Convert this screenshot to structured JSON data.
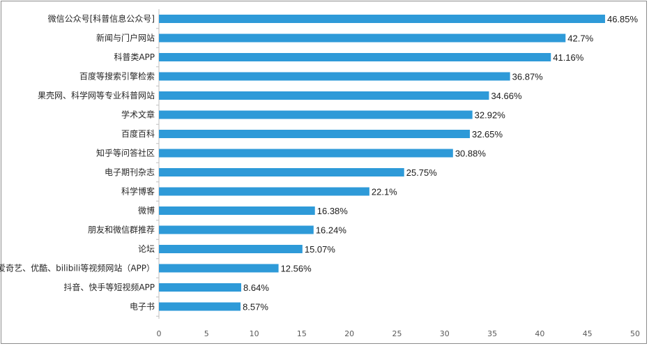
{
  "chart_data": {
    "type": "bar",
    "orientation": "horizontal",
    "title": "",
    "xlabel": "",
    "ylabel": "",
    "xlim": [
      0,
      50
    ],
    "xticks": [
      0,
      5,
      10,
      15,
      20,
      25,
      30,
      35,
      40,
      45,
      50
    ],
    "grid": false,
    "legend": "none",
    "bar_color": "#2e9ad8",
    "categories": [
      "微信公众号[科普信息公众号]",
      "新闻与门户网站",
      "科普类APP",
      "百度等搜索引擎检索",
      "果壳网、科学网等专业科普网站",
      "学术文章",
      "百度百科",
      "知乎等问答社区",
      "电子期刊杂志",
      "科学博客",
      "微博",
      "朋友和微信群推荐",
      "论坛",
      "爱奇艺、优酷、bilibili等视频网站（APP）",
      "抖音、快手等短视频APP",
      "电子书"
    ],
    "values": [
      46.85,
      42.7,
      41.16,
      36.87,
      34.66,
      32.92,
      32.65,
      30.88,
      25.75,
      22.1,
      16.38,
      16.24,
      15.07,
      12.56,
      8.64,
      8.57
    ],
    "value_labels": [
      "46.85%",
      "42.7%",
      "41.16%",
      "36.87%",
      "34.66%",
      "32.92%",
      "32.65%",
      "30.88%",
      "25.75%",
      "22.1%",
      "16.38%",
      "16.24%",
      "15.07%",
      "12.56%",
      "8.64%",
      "8.57%"
    ]
  }
}
